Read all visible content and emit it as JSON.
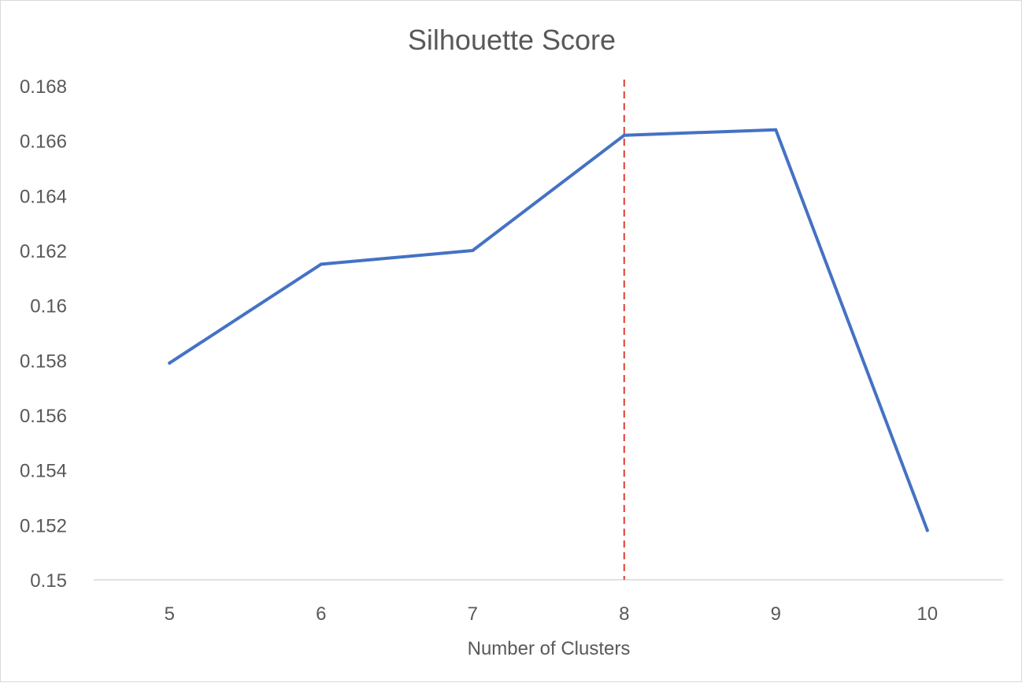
{
  "chart_data": {
    "type": "line",
    "title": "Silhouette Score",
    "xlabel": "Number of Clusters",
    "ylabel": "",
    "categories": [
      "5",
      "6",
      "7",
      "8",
      "9",
      "10"
    ],
    "series": [
      {
        "values": [
          0.1579,
          0.1615,
          0.162,
          0.1662,
          0.1664,
          0.1518
        ],
        "color": "#4472c4"
      }
    ],
    "ylim": [
      0.15,
      0.168
    ],
    "yticks": [
      "0.15",
      "0.152",
      "0.154",
      "0.156",
      "0.158",
      "0.16",
      "0.162",
      "0.164",
      "0.166",
      "0.168"
    ],
    "reference_line": {
      "category": "8",
      "style": "dashed",
      "color": "#e03c31"
    },
    "grid": false,
    "legend": "none"
  }
}
